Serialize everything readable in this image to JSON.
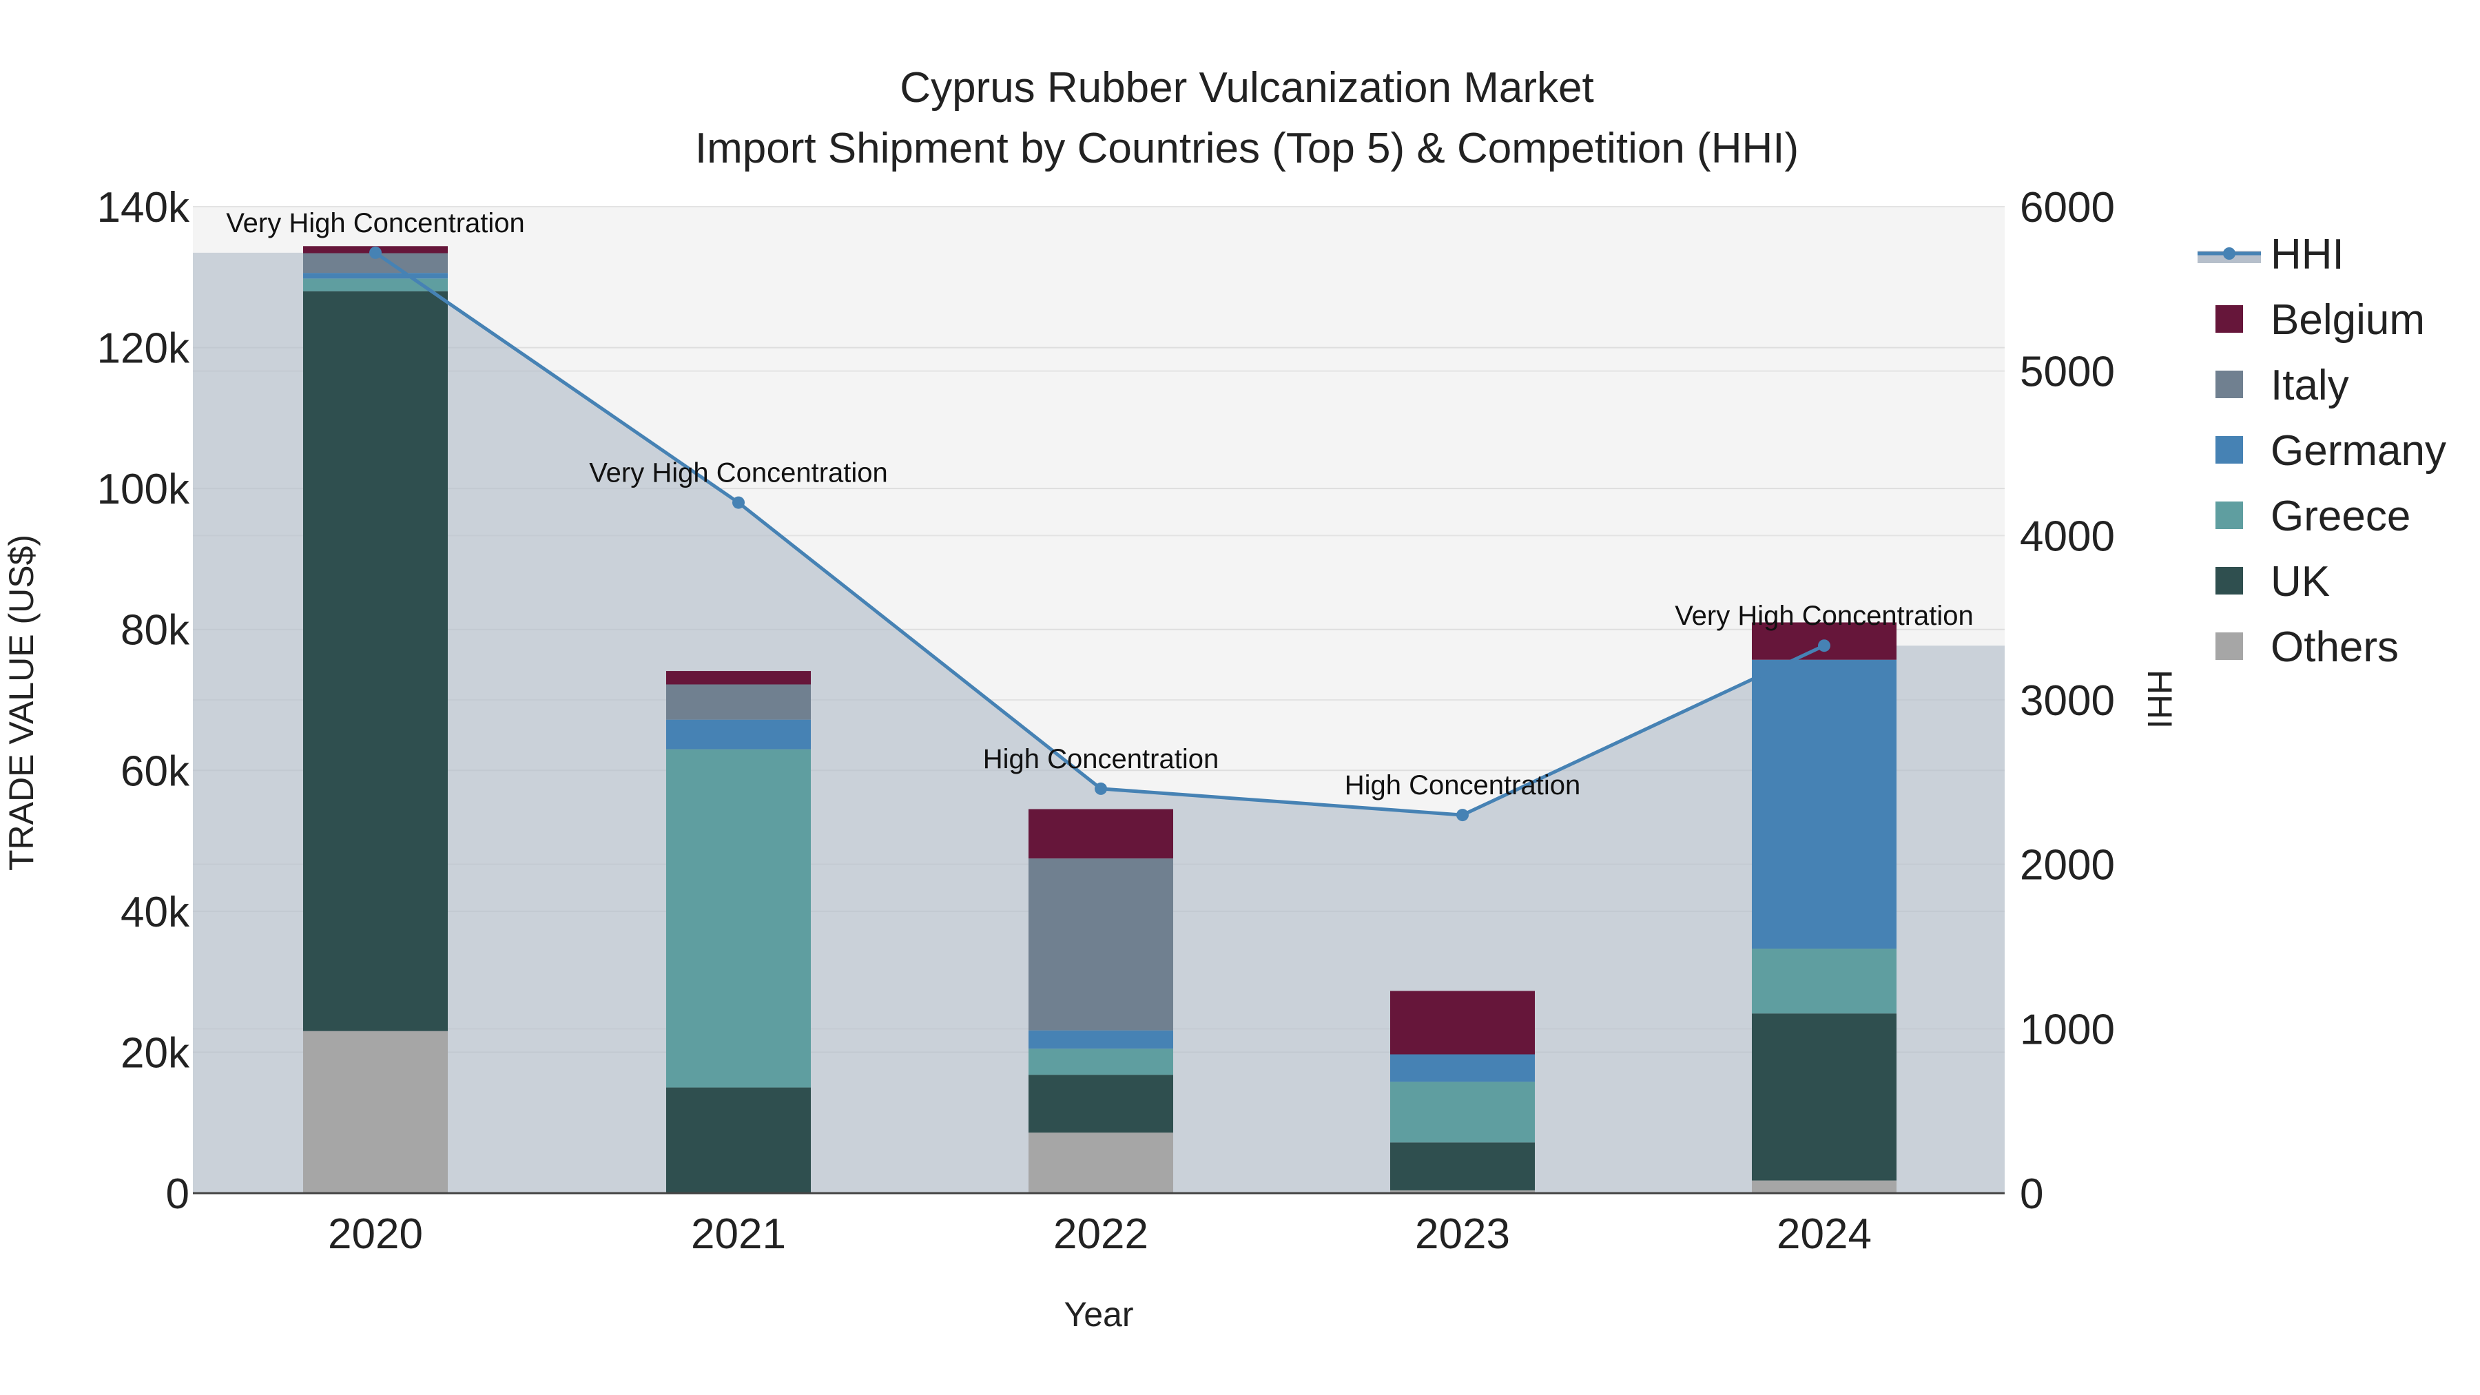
{
  "chart_data": {
    "type": "bar",
    "title": "Cyprus Rubber Vulcanization Market",
    "subtitle": "Import Shipment by Countries (Top 5) & Competition (HHI)",
    "xlabel": "Year",
    "ylabel": "TRADE VALUE (US$)",
    "y2label": "HHI",
    "categories": [
      "2020",
      "2021",
      "2022",
      "2023",
      "2024"
    ],
    "ylim": [
      0,
      140000
    ],
    "y2lim": [
      0,
      6000
    ],
    "yticks": [
      0,
      20000,
      40000,
      60000,
      80000,
      100000,
      120000,
      140000
    ],
    "ytick_labels": [
      "0",
      "20k",
      "40k",
      "60k",
      "80k",
      "100k",
      "120k",
      "140k"
    ],
    "y2ticks": [
      0,
      1000,
      2000,
      3000,
      4000,
      5000,
      6000
    ],
    "y2tick_labels": [
      "0",
      "1000",
      "2000",
      "3000",
      "4000",
      "5000",
      "6000"
    ],
    "series": [
      {
        "name": "Others",
        "color": "#a6a6a6",
        "values": [
          23000,
          0,
          8600,
          400,
          1800
        ]
      },
      {
        "name": "UK",
        "color": "#2f4f4f",
        "values": [
          105000,
          15000,
          8200,
          6800,
          23700
        ]
      },
      {
        "name": "Greece",
        "color": "#5f9ea0",
        "values": [
          1800,
          48000,
          3700,
          8600,
          9200
        ]
      },
      {
        "name": "Germany",
        "color": "#4682b4",
        "values": [
          800,
          4200,
          2600,
          3900,
          41000
        ]
      },
      {
        "name": "Italy",
        "color": "#708090",
        "values": [
          2800,
          5000,
          24400,
          0,
          0
        ]
      },
      {
        "name": "Belgium",
        "color": "#66163a",
        "values": [
          1000,
          1900,
          7000,
          9000,
          5300
        ]
      }
    ],
    "hhi": {
      "name": "HHI",
      "color": "#4682b4",
      "values": [
        5720,
        4200,
        2460,
        2300,
        3330
      ],
      "labels": [
        "Very High Concentration",
        "Very High Concentration",
        "High Concentration",
        "High Concentration",
        "Very High Concentration"
      ]
    },
    "legend": [
      "HHI",
      "Belgium",
      "Italy",
      "Germany",
      "Greece",
      "UK",
      "Others"
    ],
    "legend_position": "right",
    "grid": true
  }
}
